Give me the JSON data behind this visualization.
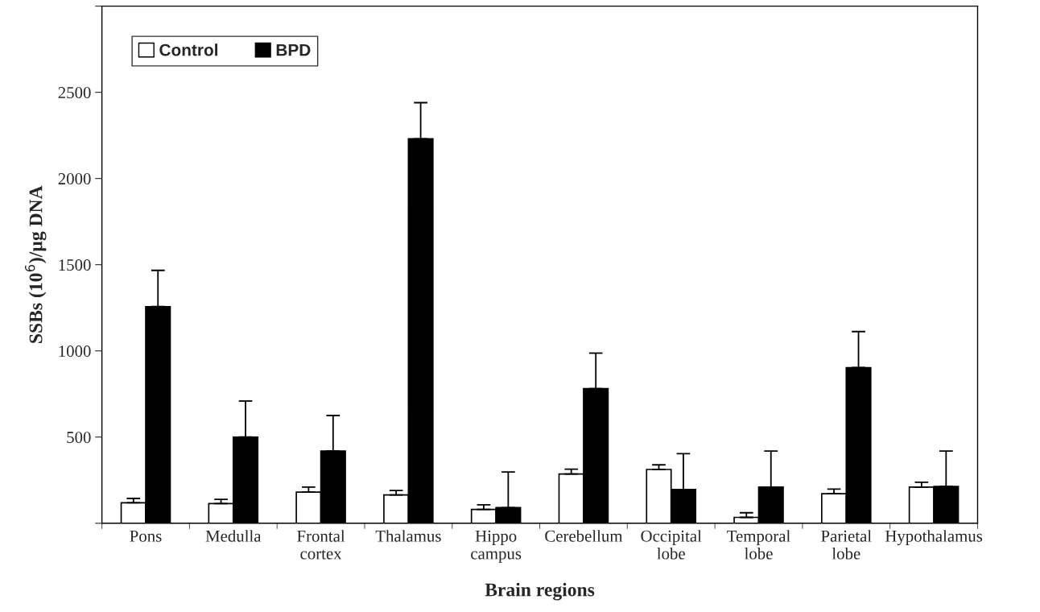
{
  "chart_data": {
    "type": "bar",
    "xlabel": "Brain regions",
    "ylabel": "SSBs (10$^{6}$)/µg DNA",
    "categories": [
      "Pons",
      "Medulla",
      "Frontal\ncortex",
      "Thalamus",
      "Hippo\ncampus",
      "Cerebellum",
      "Occipital\nlobe",
      "Temporal\nlobe",
      "Parietal\nlobe",
      "Hypothalamus"
    ],
    "series": [
      {
        "name": "Control",
        "color": "#ffffff",
        "values": [
          119,
          114,
          181,
          164,
          80,
          286,
          312,
          34,
          171,
          210
        ],
        "errors": [
          [
            119,
            144
          ],
          [
            114,
            139
          ],
          [
            181,
            210
          ],
          [
            164,
            190
          ],
          [
            80,
            107
          ],
          [
            286,
            314
          ],
          [
            312,
            339
          ],
          [
            34,
            61
          ],
          [
            171,
            198
          ],
          [
            210,
            238
          ]
        ]
      },
      {
        "name": "BPD",
        "color": "#000000",
        "values": [
          1257,
          500,
          419,
          2230,
          91,
          781,
          196,
          210,
          903,
          214
        ],
        "errors": [
          [
            1257,
            1467
          ],
          [
            500,
            709
          ],
          [
            419,
            625
          ],
          [
            2230,
            2440
          ],
          [
            91,
            297
          ],
          [
            781,
            987
          ],
          [
            196,
            404
          ],
          [
            210,
            419
          ],
          [
            903,
            1112
          ],
          [
            214,
            419
          ]
        ]
      }
    ],
    "ylim": [
      0,
      3000
    ],
    "yticks": [
      {
        "value": 0,
        "label": null
      },
      500,
      1000,
      1500,
      2000,
      2500,
      {
        "value": 3000,
        "label": null
      }
    ],
    "grid": false,
    "legend": "top left"
  }
}
